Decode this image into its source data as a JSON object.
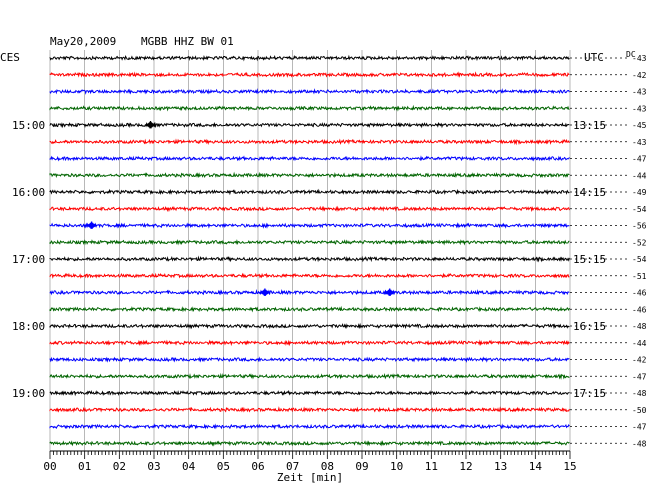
{
  "header": {
    "date": "May20,2009",
    "station": "MGBB HHZ BW 01",
    "left_zone": "CES",
    "right_zone": "UTC",
    "dc_label": "DC"
  },
  "chart_data": {
    "type": "line",
    "title": "May20,2009   MGBB HHZ BW 01",
    "xlabel": "Zeit [min]",
    "xlim": [
      0,
      15
    ],
    "x_ticks": [
      "00",
      "01",
      "02",
      "03",
      "04",
      "05",
      "06",
      "07",
      "08",
      "09",
      "10",
      "11",
      "12",
      "13",
      "14",
      "15"
    ],
    "grid": true,
    "trace_colors": [
      "#000000",
      "#ff0000",
      "#0000ff",
      "#006400"
    ],
    "left_time_labels": [
      {
        "row": 4,
        "label": "15:00"
      },
      {
        "row": 8,
        "label": "16:00"
      },
      {
        "row": 12,
        "label": "17:00"
      },
      {
        "row": 16,
        "label": "18:00"
      },
      {
        "row": 20,
        "label": "19:00"
      }
    ],
    "right_time_labels": [
      {
        "row": 4,
        "label": "13:15"
      },
      {
        "row": 8,
        "label": "14:15"
      },
      {
        "row": 12,
        "label": "15:15"
      },
      {
        "row": 16,
        "label": "16:15"
      },
      {
        "row": 20,
        "label": "17:15"
      }
    ],
    "dc_offsets": [
      "-43",
      "-42",
      "-43",
      "-43",
      "-45",
      "-43",
      "-47",
      "-44",
      "-49",
      "-54",
      "-56",
      "-52",
      "-54",
      "-51",
      "-46",
      "-46",
      "-48",
      "-44",
      "-42",
      "-47",
      "-48",
      "-50",
      "-47",
      "-48"
    ],
    "events": [
      {
        "row": 4,
        "x": 2.9
      },
      {
        "row": 10,
        "x": 1.2
      },
      {
        "row": 14,
        "x": 6.2
      },
      {
        "row": 14,
        "x": 9.8
      }
    ]
  }
}
